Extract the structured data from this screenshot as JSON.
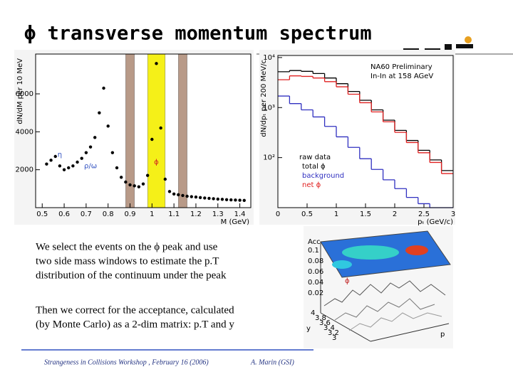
{
  "slide": {
    "title": "ϕ transverse momentum spectrum",
    "paragraphs": [
      [
        "We select the events on the ϕ peak and use",
        "two side mass windows to estimate the p.T",
        "distribution of the continuum under the peak"
      ],
      [
        "Then we correct for the acceptance, calculated",
        "(by Monte Carlo) as a 2-dim matrix: p.T and y"
      ]
    ],
    "footer": {
      "left": "Strangeness in Collisions Workshop , February 16 (2006)",
      "right": "A. Marin (GSI)"
    }
  },
  "acceptance_plot": {
    "z_label": "Acc",
    "z_ticks": [
      "0.1",
      "0.08",
      "0.06",
      "0.04",
      "0.02"
    ],
    "x_label": "p",
    "y_label": "y",
    "symbol": "ϕ",
    "y_ticks": [
      "4",
      "3.8",
      "3.6",
      "3.4",
      "3.2",
      "3"
    ]
  },
  "chart_data": [
    {
      "type": "scatter",
      "x_label": "M (GeV)",
      "y_label": "dN/dM per 10 MeV",
      "color": "#000000",
      "annotations": [
        {
          "text": "η",
          "x": 0.58,
          "y": 2800,
          "color": "#3050c0"
        },
        {
          "text": "ρ/ω",
          "x": 0.72,
          "y": 2200,
          "color": "#3050c0"
        },
        {
          "text": "ϕ",
          "x": 1.02,
          "y": 2400,
          "color": "#d02020"
        }
      ],
      "windows": [
        {
          "xlim": [
            0.88,
            0.92
          ],
          "color": "#b89a88"
        },
        {
          "xlim": [
            0.98,
            1.06
          ],
          "color": "#f5f018"
        },
        {
          "xlim": [
            1.12,
            1.16
          ],
          "color": "#b89a88"
        }
      ],
      "x": [
        0.52,
        0.54,
        0.56,
        0.58,
        0.6,
        0.62,
        0.64,
        0.66,
        0.68,
        0.7,
        0.72,
        0.74,
        0.76,
        0.78,
        0.8,
        0.82,
        0.84,
        0.86,
        0.88,
        0.9,
        0.92,
        0.94,
        0.96,
        0.98,
        1.0,
        1.02,
        1.04,
        1.06,
        1.08,
        1.1,
        1.12,
        1.14,
        1.16,
        1.18,
        1.2,
        1.22,
        1.24,
        1.26,
        1.28,
        1.3,
        1.32,
        1.34,
        1.36,
        1.38,
        1.4,
        1.42
      ],
      "values": [
        2300,
        2500,
        2700,
        2200,
        2000,
        2100,
        2200,
        2400,
        2600,
        2900,
        3200,
        3700,
        5000,
        6300,
        4300,
        2900,
        2100,
        1600,
        1350,
        1200,
        1150,
        1100,
        1250,
        1700,
        3600,
        7600,
        4200,
        1500,
        850,
        720,
        680,
        640,
        600,
        580,
        560,
        530,
        510,
        490,
        470,
        450,
        440,
        420,
        410,
        400,
        390,
        380
      ],
      "xlim": [
        0.47,
        1.45
      ],
      "xticks": [
        0.5,
        0.6,
        0.7,
        0.8,
        0.9,
        1,
        1.1,
        1.2,
        1.3,
        1.4
      ],
      "ylim": [
        0,
        8100
      ],
      "yticks": [
        2000,
        4000,
        6000
      ]
    },
    {
      "type": "histogram",
      "x_label": "pₜ (GeV/c)",
      "y_label": "dN/dpₜ per 200 MeV/c",
      "log_y": true,
      "texts": [
        "NA60 Preliminary",
        "In-In at 158 AGeV"
      ],
      "legend_title": "raw data",
      "bins": [
        0,
        0.2,
        0.4,
        0.6,
        0.8,
        1.0,
        1.2,
        1.4,
        1.6,
        1.8,
        2.0,
        2.2,
        2.4,
        2.6,
        2.8,
        3.0
      ],
      "series": [
        {
          "name": "total ϕ",
          "color": "#000000",
          "values": [
            5200,
            5500,
            5300,
            4800,
            3900,
            3000,
            2100,
            1400,
            900,
            560,
            350,
            220,
            140,
            90,
            55
          ]
        },
        {
          "name": "background",
          "color": "#3030c0",
          "values": [
            1700,
            1200,
            900,
            650,
            420,
            260,
            160,
            95,
            58,
            36,
            24,
            16,
            12,
            10,
            10
          ]
        },
        {
          "name": "net ϕ",
          "color": "#e02020",
          "values": [
            3600,
            4300,
            4200,
            3900,
            3300,
            2600,
            1850,
            1250,
            820,
            520,
            320,
            200,
            125,
            80,
            48
          ]
        }
      ],
      "xlim": [
        0,
        3
      ],
      "xticks": [
        0,
        0.5,
        1,
        1.5,
        2,
        2.5,
        3
      ],
      "ylim": [
        10,
        11000
      ],
      "yticks": [
        {
          "value": 10000,
          "label": "10⁴"
        },
        {
          "value": 1000,
          "label": "10³"
        },
        {
          "value": 100,
          "label": "10²"
        }
      ]
    }
  ]
}
